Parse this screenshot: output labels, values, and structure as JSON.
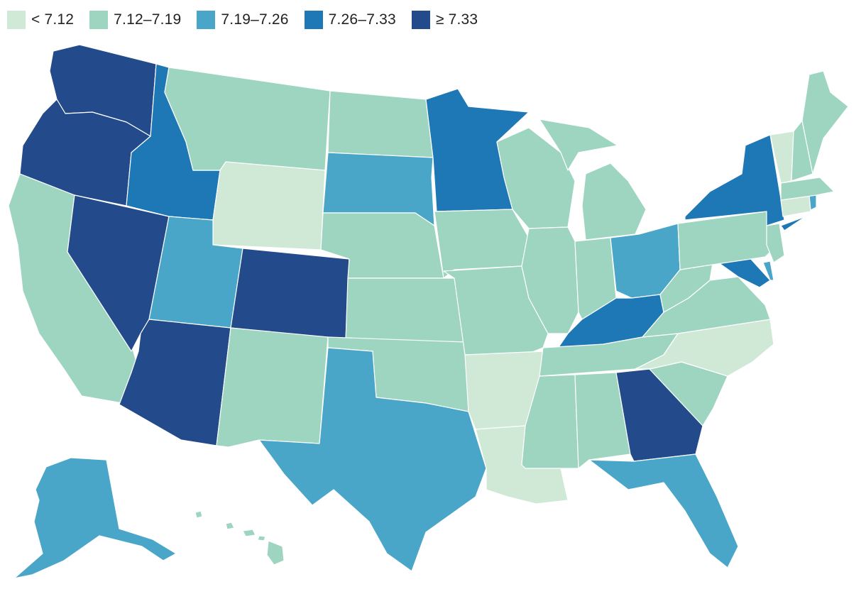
{
  "legend": [
    {
      "label": "< 7.12",
      "color": "#cfe9d6"
    },
    {
      "label": "7.12–7.19",
      "color": "#9dd5c1"
    },
    {
      "label": "7.19–7.26",
      "color": "#4aa6c9"
    },
    {
      "label": "7.26–7.33",
      "color": "#1f78b6"
    },
    {
      "label": "≥ 7.33",
      "color": "#234a8a"
    }
  ],
  "states": {
    "WA": 4,
    "OR": 4,
    "CA": 1,
    "NV": 4,
    "ID": 3,
    "MT": 1,
    "WY": 0,
    "UT": 2,
    "AZ": 4,
    "CO": 4,
    "NM": 1,
    "ND": 1,
    "SD": 2,
    "NE": 1,
    "KS": 1,
    "OK": 1,
    "TX": 2,
    "MN": 3,
    "IA": 1,
    "MO": 1,
    "AR": 0,
    "LA": 0,
    "WI": 1,
    "IL": 1,
    "MI": 1,
    "IN": 1,
    "OH": 2,
    "KY": 3,
    "TN": 1,
    "MS": 1,
    "AL": 1,
    "GA": 4,
    "FL": 2,
    "SC": 1,
    "NC": 0,
    "VA": 1,
    "WV": 1,
    "MD": 3,
    "DE": 2,
    "PA": 1,
    "NJ": 1,
    "NY": 3,
    "CT": 0,
    "RI": 2,
    "MA": 1,
    "VT": 0,
    "NH": 1,
    "ME": 1,
    "AK": 2,
    "HI": 1
  }
}
